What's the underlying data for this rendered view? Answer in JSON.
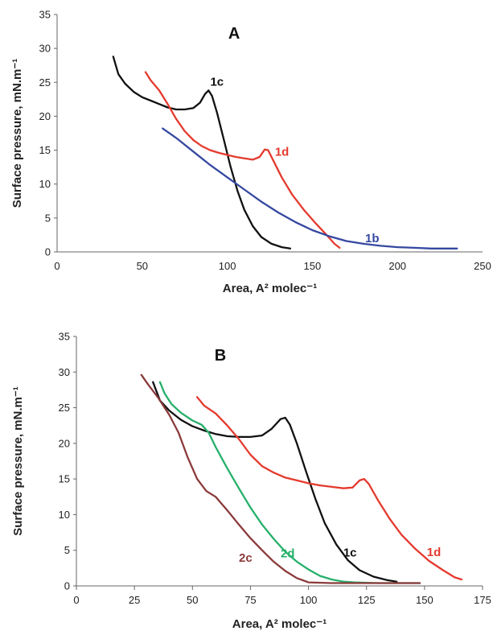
{
  "chart_data": [
    {
      "type": "line",
      "title": "A",
      "xlabel": "Area, A² molec⁻¹",
      "ylabel": "Surface pressure, mN.m⁻¹",
      "xlim": [
        0,
        250
      ],
      "ylim": [
        0,
        35
      ],
      "xticks": [
        0,
        50,
        100,
        150,
        200,
        250
      ],
      "yticks": [
        0,
        5,
        10,
        15,
        20,
        25,
        30,
        35
      ],
      "grid": false,
      "series": [
        {
          "name": "1c",
          "color": "#111111",
          "points": [
            [
              33,
              28.8
            ],
            [
              36,
              26.2
            ],
            [
              40,
              24.8
            ],
            [
              45,
              23.6
            ],
            [
              50,
              22.8
            ],
            [
              55,
              22.3
            ],
            [
              60,
              21.8
            ],
            [
              65,
              21.3
            ],
            [
              70,
              21.0
            ],
            [
              75,
              21.0
            ],
            [
              80,
              21.2
            ],
            [
              84,
              22.0
            ],
            [
              87,
              23.3
            ],
            [
              89,
              23.8
            ],
            [
              91,
              23.0
            ],
            [
              94,
              20.5
            ],
            [
              98,
              16.5
            ],
            [
              102,
              12.5
            ],
            [
              106,
              9.0
            ],
            [
              110,
              6.2
            ],
            [
              115,
              3.8
            ],
            [
              120,
              2.2
            ],
            [
              126,
              1.2
            ],
            [
              132,
              0.7
            ],
            [
              137,
              0.5
            ]
          ],
          "label_pos": [
            90,
            24.5
          ]
        },
        {
          "name": "1d",
          "color": "#e43a2e",
          "points": [
            [
              52,
              26.5
            ],
            [
              55,
              25.3
            ],
            [
              60,
              23.8
            ],
            [
              65,
              21.8
            ],
            [
              70,
              19.6
            ],
            [
              75,
              17.8
            ],
            [
              80,
              16.5
            ],
            [
              85,
              15.6
            ],
            [
              90,
              15.0
            ],
            [
              95,
              14.6
            ],
            [
              100,
              14.3
            ],
            [
              105,
              14.0
            ],
            [
              110,
              13.8
            ],
            [
              115,
              13.6
            ],
            [
              119,
              14.0
            ],
            [
              122,
              15.1
            ],
            [
              124,
              15.0
            ],
            [
              127,
              13.5
            ],
            [
              132,
              11.0
            ],
            [
              138,
              8.5
            ],
            [
              145,
              6.2
            ],
            [
              152,
              4.2
            ],
            [
              158,
              2.6
            ],
            [
              163,
              1.2
            ],
            [
              166,
              0.6
            ]
          ],
          "label_pos": [
            128,
            14.2
          ]
        },
        {
          "name": "1b",
          "color": "#3548a0",
          "points": [
            [
              62,
              18.2
            ],
            [
              70,
              16.8
            ],
            [
              80,
              14.8
            ],
            [
              90,
              12.8
            ],
            [
              100,
              11.0
            ],
            [
              110,
              9.2
            ],
            [
              120,
              7.4
            ],
            [
              130,
              5.8
            ],
            [
              140,
              4.4
            ],
            [
              150,
              3.2
            ],
            [
              160,
              2.3
            ],
            [
              170,
              1.6
            ],
            [
              180,
              1.2
            ],
            [
              190,
              0.9
            ],
            [
              200,
              0.7
            ],
            [
              210,
              0.6
            ],
            [
              220,
              0.5
            ],
            [
              235,
              0.5
            ]
          ],
          "label_pos": [
            181,
            1.4
          ]
        }
      ]
    },
    {
      "type": "line",
      "title": "B",
      "xlabel": "Area, A² molec⁻¹",
      "ylabel": "Surface pressure, mN.m⁻¹",
      "xlim": [
        0,
        175
      ],
      "ylim": [
        0,
        35
      ],
      "xticks": [
        0,
        25,
        50,
        75,
        100,
        125,
        150,
        175
      ],
      "yticks": [
        0,
        5,
        10,
        15,
        20,
        25,
        30,
        35
      ],
      "grid": false,
      "series": [
        {
          "name": "1c",
          "color": "#111111",
          "points": [
            [
              33,
              28.6
            ],
            [
              36,
              26.0
            ],
            [
              40,
              24.6
            ],
            [
              45,
              23.3
            ],
            [
              50,
              22.4
            ],
            [
              55,
              21.8
            ],
            [
              60,
              21.3
            ],
            [
              65,
              21.0
            ],
            [
              70,
              20.9
            ],
            [
              75,
              20.9
            ],
            [
              80,
              21.1
            ],
            [
              84,
              22.0
            ],
            [
              88,
              23.4
            ],
            [
              90,
              23.6
            ],
            [
              92,
              22.6
            ],
            [
              95,
              20.0
            ],
            [
              99,
              16.0
            ],
            [
              103,
              12.2
            ],
            [
              107,
              8.8
            ],
            [
              112,
              5.8
            ],
            [
              117,
              3.6
            ],
            [
              122,
              2.2
            ],
            [
              128,
              1.3
            ],
            [
              134,
              0.8
            ],
            [
              138,
              0.6
            ]
          ],
          "label_pos": [
            115,
            4.1
          ]
        },
        {
          "name": "1d",
          "color": "#e43a2e",
          "points": [
            [
              52,
              26.5
            ],
            [
              55,
              25.3
            ],
            [
              60,
              24.2
            ],
            [
              65,
              22.5
            ],
            [
              70,
              20.6
            ],
            [
              75,
              18.4
            ],
            [
              80,
              16.8
            ],
            [
              85,
              15.9
            ],
            [
              90,
              15.2
            ],
            [
              95,
              14.8
            ],
            [
              100,
              14.4
            ],
            [
              105,
              14.1
            ],
            [
              110,
              13.9
            ],
            [
              115,
              13.7
            ],
            [
              119,
              13.8
            ],
            [
              122,
              14.8
            ],
            [
              124,
              15.0
            ],
            [
              126,
              14.3
            ],
            [
              130,
              12.0
            ],
            [
              135,
              9.4
            ],
            [
              140,
              7.2
            ],
            [
              146,
              5.2
            ],
            [
              152,
              3.5
            ],
            [
              158,
              2.2
            ],
            [
              163,
              1.2
            ],
            [
              166,
              0.9
            ]
          ],
          "label_pos": [
            151,
            4.2
          ]
        },
        {
          "name": "2d",
          "color": "#26b06a",
          "points": [
            [
              36,
              28.6
            ],
            [
              38,
              27.0
            ],
            [
              41,
              25.5
            ],
            [
              45,
              24.3
            ],
            [
              50,
              23.2
            ],
            [
              54,
              22.6
            ],
            [
              57,
              21.5
            ],
            [
              60,
              19.5
            ],
            [
              65,
              16.5
            ],
            [
              70,
              13.7
            ],
            [
              75,
              11.0
            ],
            [
              80,
              8.6
            ],
            [
              85,
              6.6
            ],
            [
              90,
              4.8
            ],
            [
              95,
              3.4
            ],
            [
              100,
              2.3
            ],
            [
              105,
              1.4
            ],
            [
              110,
              0.9
            ],
            [
              115,
              0.6
            ],
            [
              120,
              0.5
            ],
            [
              130,
              0.4
            ],
            [
              148,
              0.4
            ]
          ],
          "label_pos": [
            88,
            4.0
          ]
        },
        {
          "name": "2c",
          "color": "#8b3a3a",
          "points": [
            [
              28,
              29.6
            ],
            [
              31,
              28.2
            ],
            [
              35,
              26.5
            ],
            [
              40,
              24.0
            ],
            [
              44,
              21.5
            ],
            [
              48,
              18.0
            ],
            [
              52,
              15.0
            ],
            [
              56,
              13.3
            ],
            [
              60,
              12.5
            ],
            [
              65,
              10.6
            ],
            [
              70,
              8.6
            ],
            [
              75,
              6.7
            ],
            [
              80,
              5.0
            ],
            [
              85,
              3.4
            ],
            [
              90,
              2.1
            ],
            [
              95,
              1.1
            ],
            [
              100,
              0.5
            ],
            [
              110,
              0.4
            ],
            [
              125,
              0.4
            ],
            [
              148,
              0.4
            ]
          ],
          "label_pos": [
            70,
            3.4
          ]
        }
      ]
    }
  ]
}
